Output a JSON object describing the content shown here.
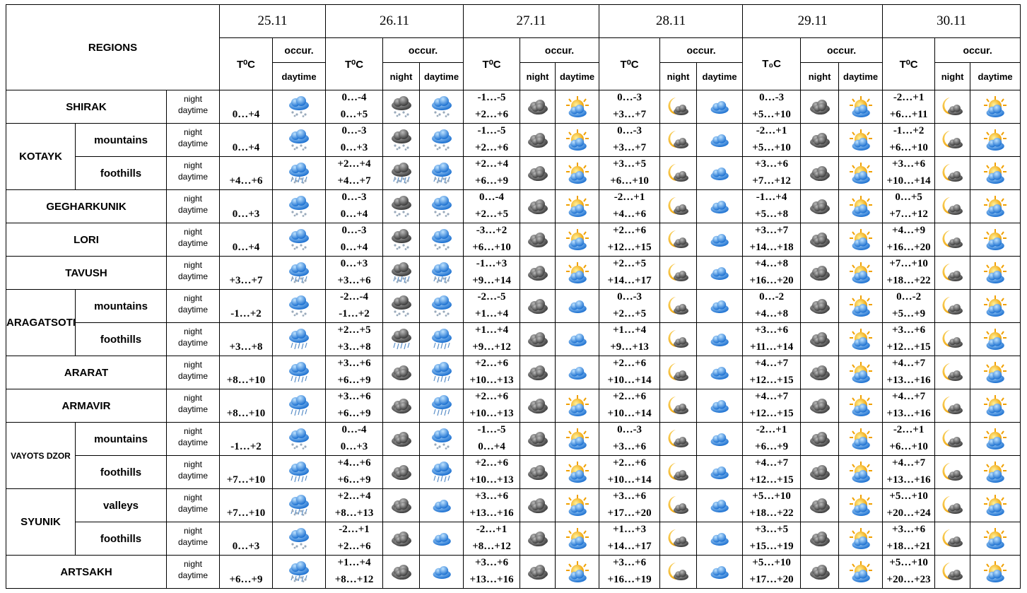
{
  "header": {
    "regions": "REGIONS",
    "days": [
      {
        "date": "25.11",
        "temp": "T⁰C",
        "occur": "occur.",
        "parts": [
          "daytime"
        ]
      },
      {
        "date": "26.11",
        "temp": "T⁰C",
        "occur": "occur.",
        "parts": [
          "night",
          "daytime"
        ]
      },
      {
        "date": "27.11",
        "temp": "T⁰C",
        "occur": "occur.",
        "parts": [
          "night",
          "daytime"
        ]
      },
      {
        "date": "28.11",
        "temp": "T⁰C",
        "occur": "occur.",
        "parts": [
          "night",
          "daytime"
        ]
      },
      {
        "date": "29.11",
        "temp": "T₀C",
        "occur": "occur.",
        "parts": [
          "night",
          "daytime"
        ]
      },
      {
        "date": "30.11",
        "temp": "T⁰C",
        "occur": "occur.",
        "parts": [
          "night",
          "daytime"
        ]
      }
    ]
  },
  "groups": [
    {
      "region": "SHIRAK",
      "rows": [
        {
          "periods": [
            "night",
            "daytime"
          ],
          "temps": [
            [
              "0…+4"
            ],
            [
              "0…-4",
              "0…+5"
            ],
            [
              "-1…-5",
              "+2…+6"
            ],
            [
              "0…-3",
              "+3…+7"
            ],
            [
              "0…-3",
              "+5…+10"
            ],
            [
              "-2…+1",
              "+6…+11"
            ]
          ]
        }
      ]
    },
    {
      "region": "KOTAYK",
      "rows": [
        {
          "sub": "mountains",
          "periods": [
            "night",
            "daytime"
          ],
          "temps": [
            [
              "0…+4"
            ],
            [
              "0…-3",
              "0…+3"
            ],
            [
              "-1…-5",
              "+2…+6"
            ],
            [
              "0…-3",
              "+3…+7"
            ],
            [
              "-2…+1",
              "+5…+10"
            ],
            [
              "-1…+2",
              "+6…+10"
            ]
          ]
        },
        {
          "sub": "foothills",
          "periods": [
            "night",
            "daytime"
          ],
          "temps": [
            [
              "+4…+6"
            ],
            [
              "+2…+4",
              "+4…+7"
            ],
            [
              "+2…+4",
              "+6…+9"
            ],
            [
              "+3…+5",
              "+6…+10"
            ],
            [
              "+3…+6",
              "+7…+12"
            ],
            [
              "+3…+6",
              "+10…+14"
            ]
          ]
        }
      ]
    },
    {
      "region": "GEGHARKUNIK",
      "rows": [
        {
          "periods": [
            "night",
            "daytime"
          ],
          "temps": [
            [
              "0…+3"
            ],
            [
              "0…-3",
              "0…+4"
            ],
            [
              "0…-4",
              "+2…+5"
            ],
            [
              "-2…+1",
              "+4…+6"
            ],
            [
              "-1…+4",
              "+5…+8"
            ],
            [
              "0…+5",
              "+7…+12"
            ]
          ]
        }
      ]
    },
    {
      "region": "LORI",
      "rows": [
        {
          "periods": [
            "night",
            "daytime"
          ],
          "temps": [
            [
              "0…+4"
            ],
            [
              "0…-3",
              "0…+4"
            ],
            [
              "-3…+2",
              "+6…+10"
            ],
            [
              "+2…+6",
              "+12…+15"
            ],
            [
              "+3…+7",
              "+14…+18"
            ],
            [
              "+4…+9",
              "+16…+20"
            ]
          ]
        }
      ]
    },
    {
      "region": "TAVUSH",
      "rows": [
        {
          "periods": [
            "night",
            "daytime"
          ],
          "temps": [
            [
              "+3…+7"
            ],
            [
              "0…+3",
              "+3…+6"
            ],
            [
              "-1…+3",
              "+9…+14"
            ],
            [
              "+2…+5",
              "+14…+17"
            ],
            [
              "+4…+8",
              "+16…+20"
            ],
            [
              "+7…+10",
              "+18…+22"
            ]
          ]
        }
      ]
    },
    {
      "region": "ARAGATSOTN",
      "rows": [
        {
          "sub": "mountains",
          "periods": [
            "night",
            "daytime"
          ],
          "temps": [
            [
              "-1…+2"
            ],
            [
              "-2…-4",
              "-1…+2"
            ],
            [
              "-2…-5",
              "+1…+4"
            ],
            [
              "0…-3",
              "+2…+5"
            ],
            [
              "0…-2",
              "+4…+8"
            ],
            [
              "0…-2",
              "+5…+9"
            ]
          ]
        },
        {
          "sub": "foothills",
          "periods": [
            "night",
            "daytime"
          ],
          "temps": [
            [
              "+3…+8"
            ],
            [
              "+2…+5",
              "+3…+8"
            ],
            [
              "+1…+4",
              "+9…+12"
            ],
            [
              "+1…+4",
              "+9…+13"
            ],
            [
              "+3…+6",
              "+11…+14"
            ],
            [
              "+3…+6",
              "+12…+15"
            ]
          ]
        }
      ]
    },
    {
      "region": "ARARAT",
      "rows": [
        {
          "periods": [
            "night",
            "daytime"
          ],
          "temps": [
            [
              "+8…+10"
            ],
            [
              "+3…+6",
              "+6…+9"
            ],
            [
              "+2…+6",
              "+10…+13"
            ],
            [
              "+2…+6",
              "+10…+14"
            ],
            [
              "+4…+7",
              "+12…+15"
            ],
            [
              "+4…+7",
              "+13…+16"
            ]
          ]
        }
      ]
    },
    {
      "region": "ARMAVIR",
      "rows": [
        {
          "periods": [
            "night",
            "daytime"
          ],
          "temps": [
            [
              "+8…+10"
            ],
            [
              "+3…+6",
              "+6…+9"
            ],
            [
              "+2…+6",
              "+10…+13"
            ],
            [
              "+2…+6",
              "+10…+14"
            ],
            [
              "+4…+7",
              "+12…+15"
            ],
            [
              "+4…+7",
              "+13…+16"
            ]
          ]
        }
      ]
    },
    {
      "region": "VAYOTS DZOR",
      "rows": [
        {
          "sub": "mountains",
          "periods": [
            "night",
            "daytime"
          ],
          "temps": [
            [
              "-1…+2"
            ],
            [
              "0…-4",
              "0…+3"
            ],
            [
              "-1…-5",
              "0…+4"
            ],
            [
              "0…-3",
              "+3…+6"
            ],
            [
              "-2…+1",
              "+6…+9"
            ],
            [
              "-2…+1",
              "+6…+10"
            ]
          ]
        },
        {
          "sub": "foothills",
          "periods": [
            "night",
            "daytime"
          ],
          "temps": [
            [
              "+7…+10"
            ],
            [
              "+4…+6",
              "+6…+9"
            ],
            [
              "+2…+6",
              "+10…+13"
            ],
            [
              "+2…+6",
              "+10…+14"
            ],
            [
              "+4…+7",
              "+12…+15"
            ],
            [
              "+4…+7",
              "+13…+16"
            ]
          ]
        }
      ]
    },
    {
      "region": "SYUNIK",
      "rows": [
        {
          "sub": "valleys",
          "periods": [
            "night",
            "daytime"
          ],
          "temps": [
            [
              "+7…+10"
            ],
            [
              "+2…+4",
              "+8…+13"
            ],
            [
              "+3…+6",
              "+13…+16"
            ],
            [
              "+3…+6",
              "+17…+20"
            ],
            [
              "+5…+10",
              "+18…+22"
            ],
            [
              "+5…+10",
              "+20…+24"
            ]
          ]
        },
        {
          "sub": "foothills",
          "periods": [
            "night",
            "daytime"
          ],
          "temps": [
            [
              "0…+3"
            ],
            [
              "-2…+1",
              "+2…+6"
            ],
            [
              "-2…+1",
              "+8…+12"
            ],
            [
              "+1…+3",
              "+14…+17"
            ],
            [
              "+3…+5",
              "+15…+19"
            ],
            [
              "+3…+6",
              "+18…+21"
            ]
          ]
        }
      ]
    },
    {
      "region": "ARTSAKH",
      "rows": [
        {
          "periods": [
            "night",
            "daytime"
          ],
          "temps": [
            [
              "+6…+9"
            ],
            [
              "+1…+4",
              "+8…+12"
            ],
            [
              "+3…+6",
              "+13…+16"
            ],
            [
              "+3…+6",
              "+16…+19"
            ],
            [
              "+5…+10",
              "+17…+20"
            ],
            [
              "+5…+10",
              "+20…+23"
            ]
          ]
        }
      ]
    }
  ]
}
